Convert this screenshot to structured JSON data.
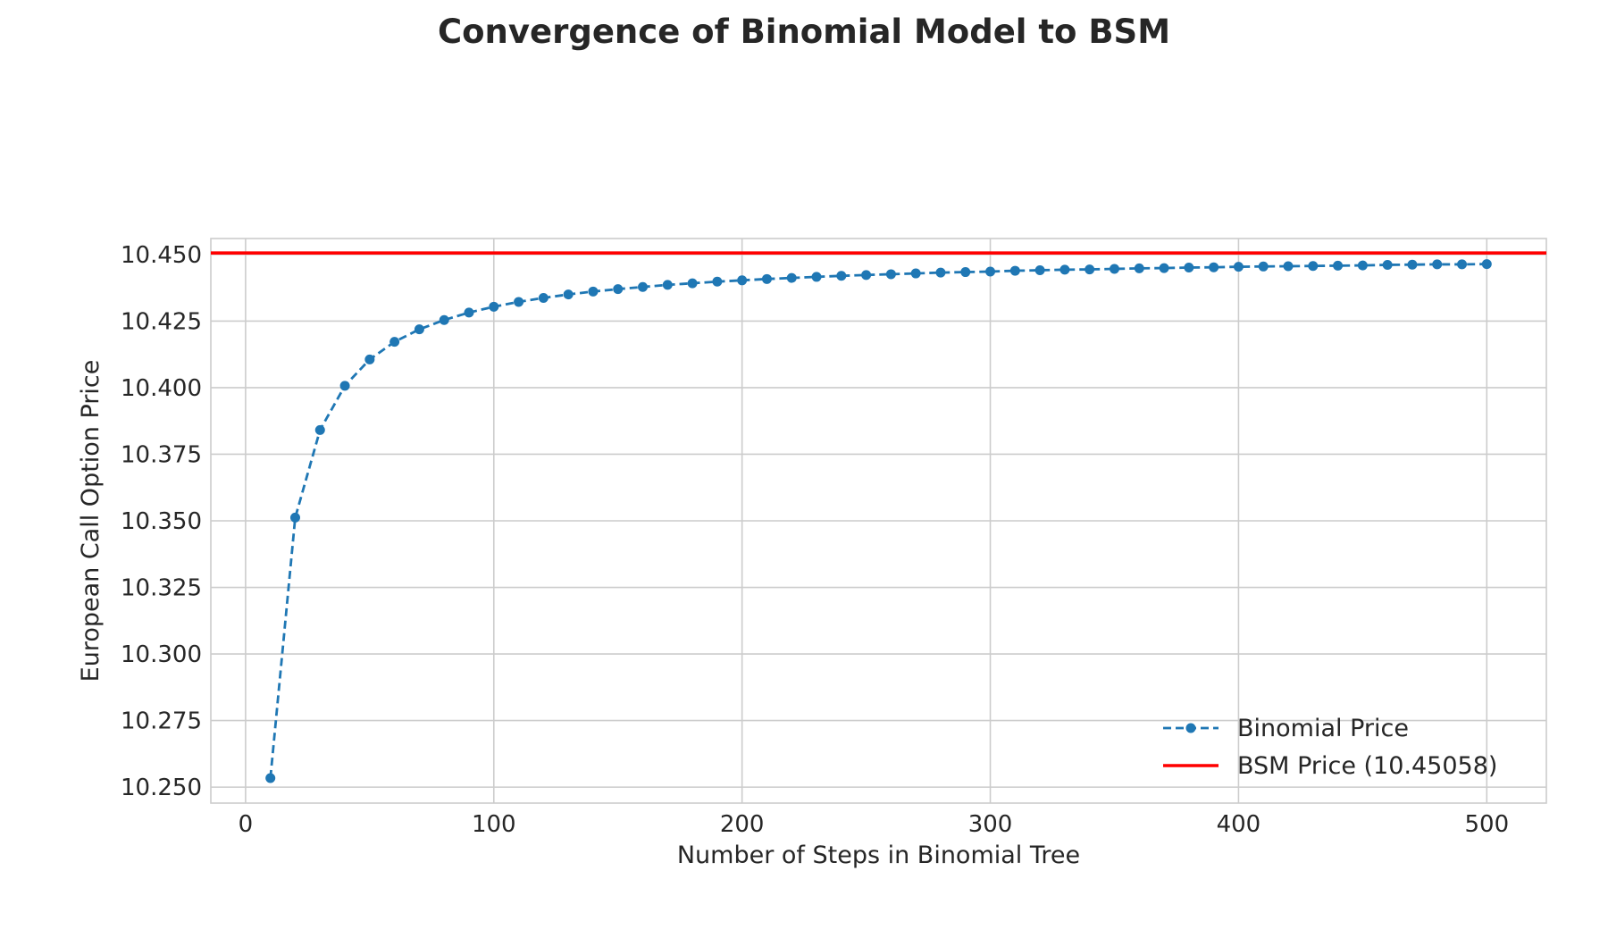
{
  "chart_data": {
    "type": "line",
    "title": "Convergence of Binomial Model to BSM",
    "xlabel": "Number of Steps in Binomial Tree",
    "ylabel": "European Call Option Price",
    "xlim": [
      -14,
      524
    ],
    "ylim": [
      10.244,
      10.456
    ],
    "x_ticks": [
      0,
      100,
      200,
      300,
      400,
      500
    ],
    "y_ticks": [
      10.25,
      10.275,
      10.3,
      10.325,
      10.35,
      10.375,
      10.4,
      10.425,
      10.45
    ],
    "grid": true,
    "legend_position": "lower-right",
    "series": [
      {
        "name": "Binomial Price",
        "style": "dashed-line-with-circle-markers",
        "color": "#1f77b4",
        "x": [
          10,
          20,
          30,
          40,
          50,
          60,
          70,
          80,
          90,
          100,
          110,
          120,
          130,
          140,
          150,
          160,
          170,
          180,
          190,
          200,
          210,
          220,
          230,
          240,
          250,
          260,
          270,
          280,
          290,
          300,
          310,
          320,
          330,
          340,
          350,
          360,
          370,
          380,
          390,
          400,
          410,
          420,
          430,
          440,
          450,
          460,
          470,
          480,
          490,
          500
        ],
        "y": [
          10.2534,
          10.3512,
          10.3841,
          10.4007,
          10.4106,
          10.4172,
          10.4219,
          10.4254,
          10.4282,
          10.4304,
          10.4322,
          10.4337,
          10.435,
          10.4361,
          10.437,
          10.4378,
          10.4386,
          10.4392,
          10.4398,
          10.4403,
          10.4408,
          10.4412,
          10.4416,
          10.442,
          10.4423,
          10.4426,
          10.4429,
          10.4432,
          10.4434,
          10.4436,
          10.4439,
          10.4441,
          10.4443,
          10.4444,
          10.4446,
          10.4448,
          10.4449,
          10.4451,
          10.4452,
          10.4454,
          10.4455,
          10.4456,
          10.4457,
          10.4458,
          10.4459,
          10.4461,
          10.4462,
          10.4463,
          10.4463,
          10.4464
        ]
      },
      {
        "name": "BSM Price (10.45058)",
        "style": "solid-horizontal-line",
        "color": "#ff0000",
        "y": 10.45058
      }
    ]
  }
}
